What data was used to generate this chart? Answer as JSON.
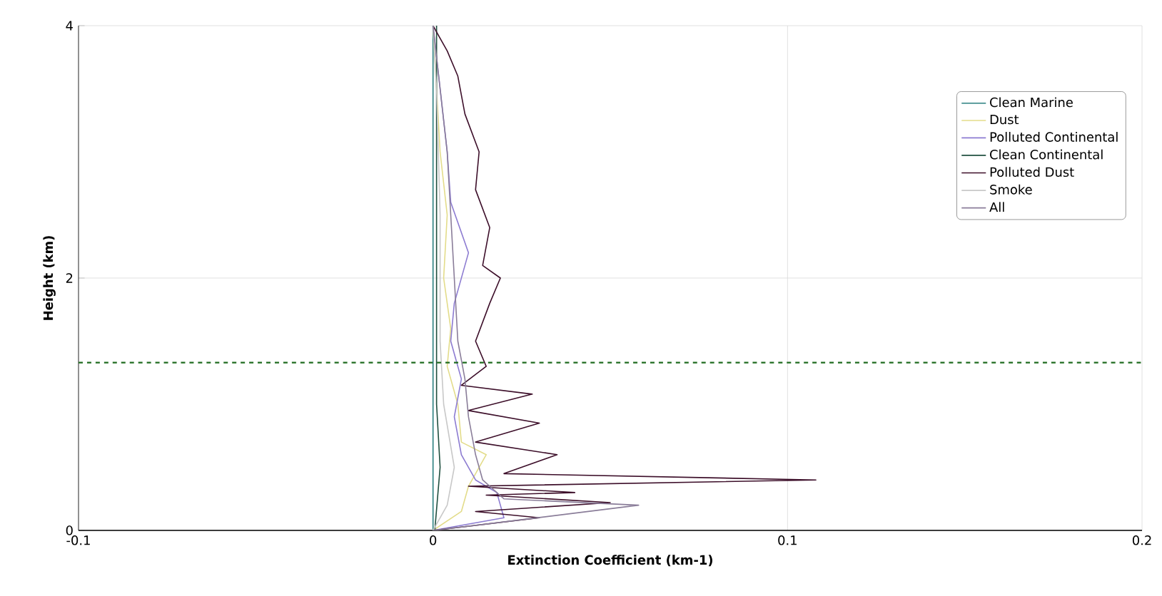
{
  "chart_data": {
    "type": "line",
    "xlabel": "Extinction Coefficient (km-1)",
    "ylabel": "Height (km)",
    "xlim": [
      -0.1,
      0.2
    ],
    "xticks": [
      -0.1,
      0,
      0.1,
      0.2
    ],
    "ylim": [
      0,
      4
    ],
    "yticks": [
      0,
      2,
      4
    ],
    "grid": true,
    "legend": "right",
    "marker": "none",
    "line_style": "solid",
    "ref_lines": [
      {
        "axis": "y",
        "value": 1.33,
        "color": "#1e6b1e",
        "line_style": "dashed"
      }
    ],
    "series": [
      {
        "name": "Clean Marine",
        "color": "#2a8080",
        "x": [
          0,
          0
        ],
        "values": [
          0,
          4
        ]
      },
      {
        "name": "Dust",
        "color": "#e3dc8a",
        "x": [
          0,
          0.008,
          0.01,
          0.015,
          0.008,
          0.007,
          0.004,
          0.005,
          0.003,
          0.004,
          0.002,
          0.001,
          0
        ],
        "values": [
          0,
          0.15,
          0.35,
          0.6,
          0.7,
          1.0,
          1.3,
          1.6,
          2.0,
          2.5,
          3.0,
          3.5,
          4
        ]
      },
      {
        "name": "Polluted Continental",
        "color": "#8c7bd1",
        "x": [
          0,
          0.02,
          0.018,
          0.012,
          0.008,
          0.006,
          0.008,
          0.005,
          0.006,
          0.01,
          0.005,
          0.004,
          0.002,
          0
        ],
        "values": [
          0,
          0.1,
          0.3,
          0.4,
          0.6,
          0.9,
          1.2,
          1.5,
          1.8,
          2.2,
          2.6,
          3.0,
          3.5,
          4
        ]
      },
      {
        "name": "Clean Continental",
        "color": "#1f4f3f",
        "x": [
          0.0005,
          0.002,
          0.001,
          0.001
        ],
        "values": [
          0,
          0.5,
          1,
          4
        ]
      },
      {
        "name": "Polluted Dust",
        "color": "#3d0f2a",
        "x": [
          0,
          0.03,
          0.012,
          0.05,
          0.015,
          0.04,
          0.01,
          0.108,
          0.02,
          0.035,
          0.012,
          0.03,
          0.01,
          0.028,
          0.008,
          0.015,
          0.012,
          0.016,
          0.019,
          0.014,
          0.016,
          0.012,
          0.013,
          0.009,
          0.007,
          0.004,
          0
        ],
        "values": [
          0,
          0.1,
          0.15,
          0.22,
          0.28,
          0.3,
          0.35,
          0.4,
          0.45,
          0.6,
          0.7,
          0.85,
          0.95,
          1.08,
          1.15,
          1.3,
          1.5,
          1.8,
          2.0,
          2.1,
          2.4,
          2.7,
          3.0,
          3.3,
          3.6,
          3.8,
          4
        ]
      },
      {
        "name": "Smoke",
        "color": "#c8c8c8",
        "x": [
          0,
          0.004,
          0.006,
          0.003,
          0.002,
          0.002,
          0.001,
          0
        ],
        "values": [
          0,
          0.2,
          0.5,
          1.0,
          1.5,
          2.5,
          3.5,
          4
        ]
      },
      {
        "name": "All",
        "color": "#8a7d99",
        "x": [
          0,
          0.015,
          0.058,
          0.02,
          0.014,
          0.012,
          0.01,
          0.009,
          0.007,
          0.006,
          0.005,
          0.004,
          0.002,
          0
        ],
        "values": [
          0,
          0.05,
          0.2,
          0.25,
          0.4,
          0.6,
          0.9,
          1.2,
          1.5,
          2,
          2.5,
          3,
          3.5,
          4
        ]
      }
    ]
  }
}
